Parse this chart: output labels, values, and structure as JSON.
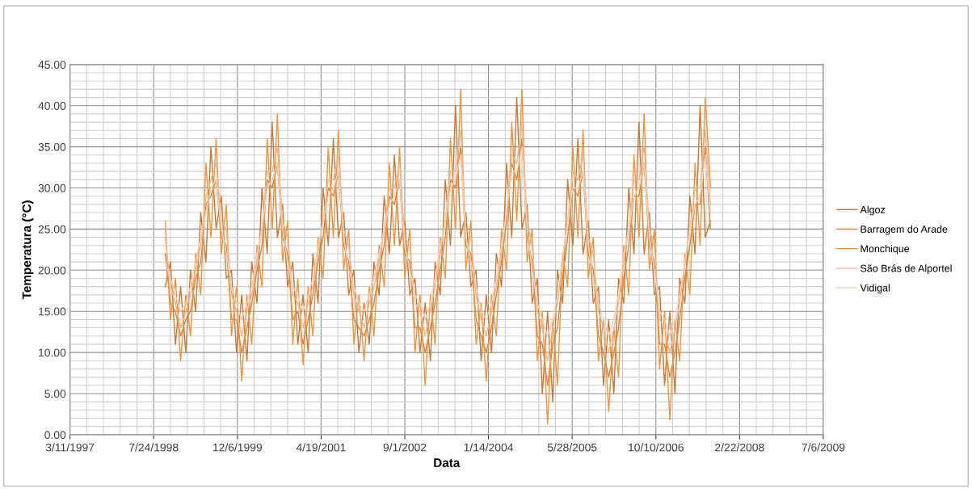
{
  "chart_data": {
    "type": "line",
    "xlabel": "Data",
    "ylabel": "Temperatura (°C)",
    "x": [
      "1998-10",
      "1998-11",
      "1998-12",
      "1999-01",
      "1999-02",
      "1999-03",
      "1999-04",
      "1999-05",
      "1999-06",
      "1999-07",
      "1999-08",
      "1999-09",
      "1999-10",
      "1999-11",
      "1999-12",
      "2000-01",
      "2000-02",
      "2000-03",
      "2000-04",
      "2000-05",
      "2000-06",
      "2000-07",
      "2000-08",
      "2000-09",
      "2000-10",
      "2000-11",
      "2000-12",
      "2001-01",
      "2001-02",
      "2001-03",
      "2001-04",
      "2001-05",
      "2001-06",
      "2001-07",
      "2001-08",
      "2001-09",
      "2001-10",
      "2001-11",
      "2001-12",
      "2002-01",
      "2002-02",
      "2002-03",
      "2002-04",
      "2002-05",
      "2002-06",
      "2002-07",
      "2002-08",
      "2002-09",
      "2002-10",
      "2002-11",
      "2002-12",
      "2003-01",
      "2003-02",
      "2003-03",
      "2003-04",
      "2003-05",
      "2003-06",
      "2003-07",
      "2003-08",
      "2003-09",
      "2003-10",
      "2003-11",
      "2003-12",
      "2004-01",
      "2004-02",
      "2004-03",
      "2004-04",
      "2004-05",
      "2004-06",
      "2004-07",
      "2004-08",
      "2004-09",
      "2004-10",
      "2004-11",
      "2004-12",
      "2005-01",
      "2005-02",
      "2005-03",
      "2005-04",
      "2005-05",
      "2005-06",
      "2005-07",
      "2005-08",
      "2005-09",
      "2005-10",
      "2005-11",
      "2005-12",
      "2006-01",
      "2006-02",
      "2006-03",
      "2006-04",
      "2006-05",
      "2006-06",
      "2006-07",
      "2006-08",
      "2006-09",
      "2006-10",
      "2006-11",
      "2006-12",
      "2007-01",
      "2007-02",
      "2007-03",
      "2007-04",
      "2007-05",
      "2007-06",
      "2007-07",
      "2007-08",
      "2007-09"
    ],
    "series": [
      {
        "name": "Algoz",
        "color": "#c87838",
        "values": [
          18,
          21,
          11,
          18,
          10,
          20,
          15,
          27,
          21,
          35,
          25,
          29,
          19,
          20,
          10,
          17,
          9,
          21,
          16,
          30,
          22,
          38,
          24,
          28,
          18,
          21,
          11,
          17,
          10,
          22,
          16,
          30,
          23,
          36,
          24,
          27,
          17,
          20,
          10,
          16,
          11,
          21,
          17,
          29,
          22,
          34,
          23,
          26,
          17,
          19,
          10,
          16,
          9,
          21,
          17,
          31,
          23,
          40,
          24,
          27,
          18,
          20,
          9,
          17,
          10,
          22,
          18,
          33,
          24,
          41,
          25,
          28,
          16,
          19,
          5,
          15,
          4,
          20,
          16,
          31,
          23,
          36,
          22,
          26,
          16,
          18,
          6,
          14,
          5,
          19,
          16,
          30,
          22,
          38,
          22,
          27,
          17,
          18,
          6,
          15,
          5,
          19,
          16,
          29,
          22,
          40,
          24,
          26
        ]
      },
      {
        "name": "Barragem do Arade",
        "color": "#d8843c",
        "values": [
          22,
          16,
          15,
          12,
          14,
          15,
          19,
          21,
          28,
          29,
          31,
          24,
          23,
          14,
          14,
          10,
          13,
          16,
          20,
          23,
          31,
          30,
          33,
          24,
          22,
          14,
          15,
          11,
          14,
          17,
          21,
          24,
          30,
          29,
          32,
          23,
          21,
          14,
          13,
          12,
          14,
          16,
          20,
          23,
          29,
          28,
          31,
          22,
          21,
          13,
          13,
          10,
          13,
          16,
          20,
          24,
          31,
          30,
          35,
          23,
          22,
          14,
          12,
          10,
          13,
          17,
          21,
          26,
          33,
          31,
          36,
          24,
          21,
          12,
          11,
          6,
          11,
          13,
          19,
          24,
          30,
          29,
          32,
          22,
          20,
          12,
          10,
          7,
          10,
          13,
          19,
          23,
          29,
          29,
          33,
          23,
          21,
          11,
          11,
          7,
          10,
          14,
          19,
          23,
          28,
          28,
          35,
          25
        ]
      },
      {
        "name": "Monchique",
        "color": "#f0943c",
        "values": [
          26,
          14,
          19,
          9,
          17,
          12,
          22,
          17,
          33,
          24,
          36,
          22,
          28,
          12,
          18,
          6.5,
          17,
          11,
          23,
          18,
          36,
          25,
          39,
          21,
          26,
          11,
          19,
          8.5,
          18,
          12,
          24,
          19,
          35,
          24,
          37,
          20,
          25,
          11,
          17,
          9,
          18,
          12,
          23,
          18,
          33,
          23,
          35,
          19,
          25,
          10,
          17,
          6,
          17,
          11,
          24,
          19,
          36,
          25,
          42,
          20,
          26,
          11,
          16,
          6.5,
          17,
          12,
          25,
          20,
          38,
          26,
          42,
          21,
          25,
          9,
          15,
          1.3,
          14,
          6,
          22,
          18,
          35,
          24,
          37,
          19,
          24,
          9,
          14,
          2.8,
          13,
          7,
          23,
          17,
          34,
          24,
          39,
          20,
          25,
          8,
          15,
          1.8,
          14,
          9,
          22,
          17,
          33,
          23,
          41,
          30
        ]
      },
      {
        "name": "São Brás de Alportel",
        "color": "#f2b890",
        "values": [
          24,
          18,
          16,
          13,
          15,
          17,
          20,
          23,
          29,
          31,
          33,
          26,
          25,
          17,
          15,
          12,
          15,
          17,
          21,
          25,
          32,
          32,
          35,
          26,
          24,
          17,
          16,
          13,
          16,
          18,
          22,
          26,
          31,
          31,
          34,
          25,
          23,
          17,
          15,
          13,
          16,
          18,
          21,
          25,
          30,
          30,
          33,
          24,
          23,
          16,
          15,
          12,
          15,
          18,
          22,
          26,
          32,
          32,
          37,
          25,
          24,
          17,
          14,
          12,
          15,
          18,
          22,
          27,
          34,
          33,
          38,
          26,
          23,
          15,
          13,
          9,
          13,
          16,
          21,
          26,
          32,
          31,
          34,
          24,
          22,
          15,
          13,
          10,
          13,
          16,
          21,
          25,
          31,
          31,
          35,
          25,
          23,
          14,
          13,
          10,
          13,
          16,
          21,
          25,
          30,
          30,
          37,
          28
        ]
      },
      {
        "name": "Vidigal",
        "color": "#f8d0b8",
        "values": [
          21,
          19,
          17,
          15,
          16,
          18,
          21,
          24,
          27,
          30,
          31,
          25,
          22,
          18,
          16,
          14,
          16,
          18,
          22,
          25,
          30,
          31,
          33,
          25,
          21,
          18,
          17,
          15,
          17,
          19,
          23,
          26,
          29,
          30,
          32,
          24,
          20,
          18,
          16,
          15,
          17,
          19,
          22,
          25,
          28,
          29,
          31,
          23,
          20,
          17,
          16,
          14,
          16,
          19,
          23,
          26,
          30,
          31,
          34,
          24,
          21,
          18,
          15,
          14,
          16,
          19,
          23,
          27,
          32,
          32,
          35,
          25,
          20,
          16,
          14,
          12,
          14,
          17,
          22,
          26,
          30,
          30,
          32,
          23,
          19,
          16,
          14,
          12,
          14,
          17,
          22,
          25,
          29,
          30,
          33,
          24,
          20,
          15,
          14,
          12,
          14,
          17,
          21,
          25,
          28,
          29,
          34,
          27
        ]
      }
    ],
    "xlim": [
      "1997-03-11",
      "2009-07-06"
    ],
    "xticks": [
      {
        "value": "1997-03-11",
        "label": "3/11/1997"
      },
      {
        "value": "1998-07-24",
        "label": "7/24/1998"
      },
      {
        "value": "1999-12-06",
        "label": "12/6/1999"
      },
      {
        "value": "2001-04-19",
        "label": "4/19/2001"
      },
      {
        "value": "2002-09-01",
        "label": "9/1/2002"
      },
      {
        "value": "2004-01-14",
        "label": "1/14/2004"
      },
      {
        "value": "2005-05-28",
        "label": "5/28/2005"
      },
      {
        "value": "2006-10-10",
        "label": "10/10/2006"
      },
      {
        "value": "2008-02-22",
        "label": "2/22/2008"
      },
      {
        "value": "2009-07-06",
        "label": "7/6/2009"
      }
    ],
    "ylim": [
      0,
      45
    ],
    "yticks": [
      {
        "value": 0,
        "label": "0.00"
      },
      {
        "value": 5,
        "label": "5.00"
      },
      {
        "value": 10,
        "label": "10.00"
      },
      {
        "value": 15,
        "label": "15.00"
      },
      {
        "value": 20,
        "label": "20.00"
      },
      {
        "value": 25,
        "label": "25.00"
      },
      {
        "value": 30,
        "label": "30.00"
      },
      {
        "value": 35,
        "label": "35.00"
      },
      {
        "value": 40,
        "label": "40.00"
      },
      {
        "value": 45,
        "label": "45.00"
      }
    ],
    "grid": true,
    "legend": "right",
    "line_style": "solid",
    "marker": "none"
  }
}
